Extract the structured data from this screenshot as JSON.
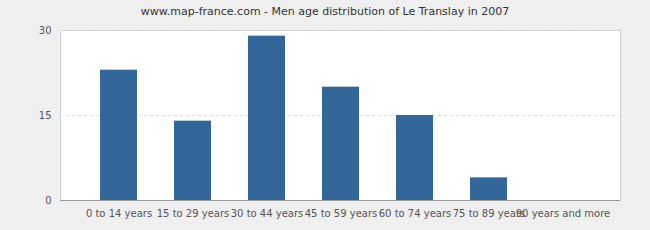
{
  "chart_data": {
    "type": "bar",
    "title": "www.map-france.com - Men age distribution of Le Translay in 2007",
    "categories": [
      "0 to 14 years",
      "15 to 29 years",
      "30 to 44 years",
      "45 to 59 years",
      "60 to 74 years",
      "75 to 89 years",
      "90 years and more"
    ],
    "values": [
      23,
      14,
      29,
      20,
      15,
      4,
      0
    ],
    "color": "#336699",
    "ylim": [
      0,
      30
    ],
    "yticks": [
      0,
      15,
      30
    ],
    "grid": true
  }
}
